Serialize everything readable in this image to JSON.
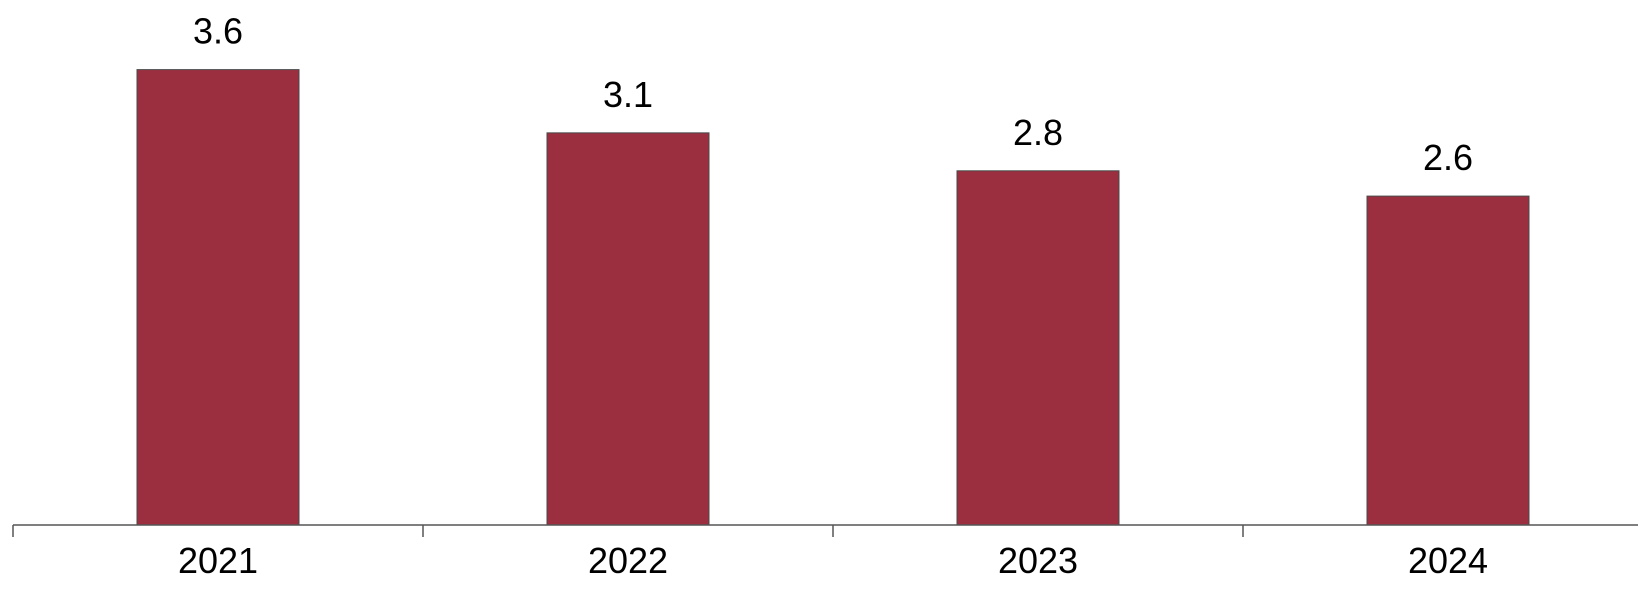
{
  "chart_data": {
    "type": "bar",
    "categories": [
      "2021",
      "2022",
      "2023",
      "2024"
    ],
    "values": [
      3.6,
      3.1,
      2.8,
      2.6
    ],
    "data_labels": [
      "3.6",
      "3.1",
      "2.8",
      "2.6"
    ],
    "title": "",
    "xlabel": "",
    "ylabel": "",
    "ylim": [
      0,
      4
    ],
    "grid": false,
    "legend": "none",
    "bar_color": "#9b2f3f"
  }
}
